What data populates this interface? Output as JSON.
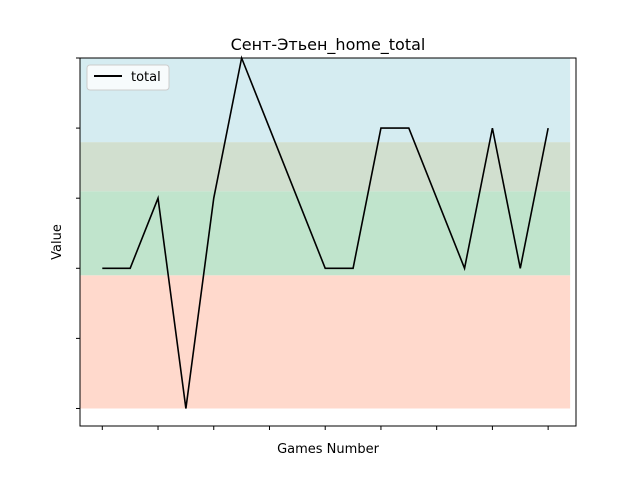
{
  "chart_data": {
    "type": "line",
    "title": "Сент-Этьен_home_total",
    "xlabel": "Games Number",
    "ylabel": "Value",
    "x": [
      1,
      2,
      3,
      4,
      5,
      6,
      7,
      8,
      9,
      10,
      11,
      12,
      13,
      14,
      15,
      16,
      17
    ],
    "xlim": [
      0.2,
      18.0
    ],
    "ylim": [
      -0.25,
      5.0
    ],
    "x_ticks": [
      1,
      3,
      5,
      7,
      9,
      11,
      13,
      15,
      17
    ],
    "y_ticks": [
      0,
      1,
      2,
      3,
      4,
      5
    ],
    "tick_labels_visible": false,
    "series": [
      {
        "name": "total",
        "color": "#000000",
        "values": [
          2,
          2,
          3,
          0,
          3,
          5,
          4,
          3,
          2,
          2,
          4,
          4,
          3,
          2,
          4,
          2,
          4
        ]
      }
    ],
    "bands": [
      {
        "from": 0.0,
        "to": 1.9,
        "color": "#ffd9cc"
      },
      {
        "from": 1.9,
        "to": 3.1,
        "color": "#c0e4cc"
      },
      {
        "from": 3.1,
        "to": 3.8,
        "color": "#d1dfcf"
      },
      {
        "from": 3.8,
        "to": 5.0,
        "color": "#d5ecf1"
      }
    ],
    "legend": {
      "position": "top-left"
    },
    "grid": false
  }
}
